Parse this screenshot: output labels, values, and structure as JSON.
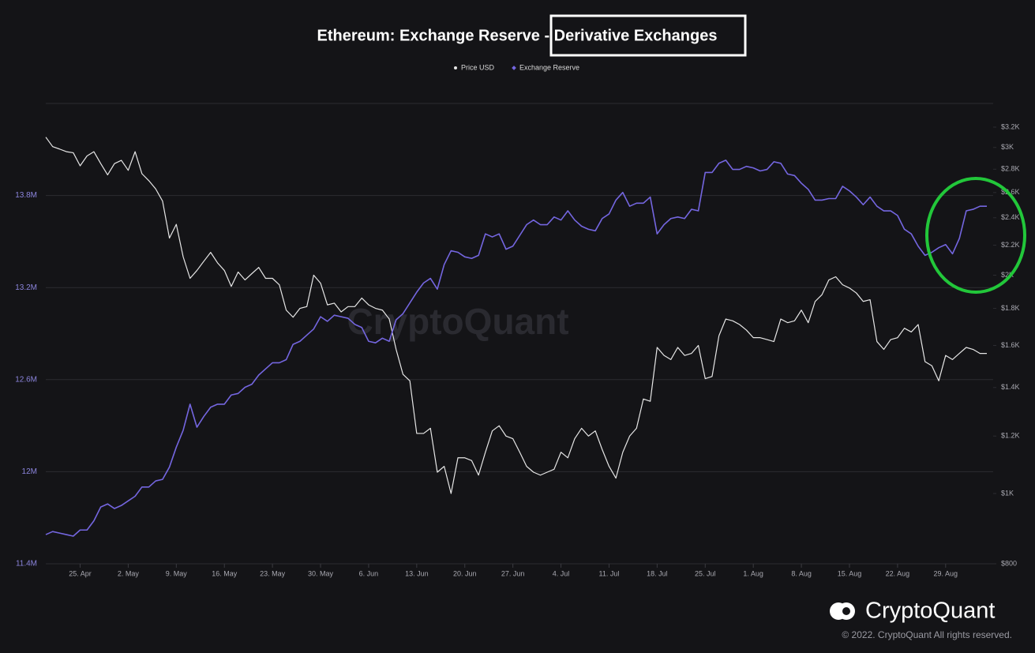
{
  "chart_data": {
    "type": "line",
    "title": "Ethereum: Exchange Reserve - Derivative Exchanges",
    "watermark": "CryptoQuant",
    "brand": "CryptoQuant",
    "footer": "© 2022. CryptoQuant All rights reserved.",
    "categories": [
      null,
      null,
      null,
      null,
      null,
      "25. Apr",
      null,
      null,
      null,
      null,
      null,
      null,
      "2. May",
      null,
      null,
      null,
      null,
      null,
      null,
      "9. May",
      null,
      null,
      null,
      null,
      null,
      null,
      "16. May",
      null,
      null,
      null,
      null,
      null,
      null,
      "23. May",
      null,
      null,
      null,
      null,
      null,
      null,
      "30. May",
      null,
      null,
      null,
      null,
      null,
      null,
      "6. Jun",
      null,
      null,
      null,
      null,
      null,
      null,
      "13. Jun",
      null,
      null,
      null,
      null,
      null,
      null,
      "20. Jun",
      null,
      null,
      null,
      null,
      null,
      null,
      "27. Jun",
      null,
      null,
      null,
      null,
      null,
      null,
      "4. Jul",
      null,
      null,
      null,
      null,
      null,
      null,
      "11. Jul",
      null,
      null,
      null,
      null,
      null,
      null,
      "18. Jul",
      null,
      null,
      null,
      null,
      null,
      null,
      "25. Jul",
      null,
      null,
      null,
      null,
      null,
      null,
      "1. Aug",
      null,
      null,
      null,
      null,
      null,
      null,
      "8. Aug",
      null,
      null,
      null,
      null,
      null,
      null,
      "15. Aug",
      null,
      null,
      null,
      null,
      null,
      null,
      "22. Aug",
      null,
      null,
      null,
      null,
      null,
      null,
      "29. Aug",
      null,
      null,
      null,
      null,
      null,
      null
    ],
    "series": [
      {
        "name": "Price USD",
        "color": "#e6e6e6",
        "axis": "y2",
        "marker": "dot",
        "values": [
          3100,
          3008,
          2985,
          2960,
          2950,
          2830,
          2920,
          2960,
          2850,
          2750,
          2850,
          2880,
          2790,
          2960,
          2760,
          2700,
          2630,
          2530,
          2250,
          2350,
          2120,
          1980,
          2030,
          2090,
          2150,
          2080,
          2030,
          1930,
          2020,
          1970,
          2010,
          2050,
          1980,
          1980,
          1940,
          1790,
          1750,
          1800,
          1810,
          2000,
          1950,
          1820,
          1830,
          1780,
          1810,
          1810,
          1860,
          1820,
          1800,
          1790,
          1740,
          1580,
          1460,
          1430,
          1210,
          1210,
          1230,
          1070,
          1090,
          1000,
          1120,
          1120,
          1110,
          1060,
          1140,
          1220,
          1240,
          1200,
          1190,
          1140,
          1090,
          1070,
          1060,
          1070,
          1080,
          1140,
          1120,
          1190,
          1230,
          1200,
          1220,
          1150,
          1090,
          1050,
          1140,
          1200,
          1230,
          1350,
          1340,
          1590,
          1550,
          1530,
          1590,
          1550,
          1560,
          1600,
          1440,
          1450,
          1650,
          1740,
          1730,
          1710,
          1680,
          1640,
          1640,
          1630,
          1620,
          1740,
          1720,
          1730,
          1790,
          1720,
          1840,
          1880,
          1970,
          1990,
          1940,
          1920,
          1890,
          1840,
          1850,
          1620,
          1580,
          1630,
          1640,
          1690,
          1670,
          1710,
          1520,
          1500,
          1430,
          1550,
          1530,
          1560,
          1590,
          1580,
          1560,
          1560
        ]
      },
      {
        "name": "Exchange Reserve",
        "color": "#7466e0",
        "axis": "y",
        "marker": "diamond",
        "values": [
          11590000,
          11610000,
          11600000,
          11590000,
          11580000,
          11620000,
          11620000,
          11680000,
          11770000,
          11790000,
          11760000,
          11780000,
          11810000,
          11840000,
          11900000,
          11900000,
          11940000,
          11950000,
          12030000,
          12160000,
          12270000,
          12440000,
          12290000,
          12360000,
          12420000,
          12440000,
          12440000,
          12500000,
          12510000,
          12550000,
          12570000,
          12630000,
          12670000,
          12710000,
          12710000,
          12730000,
          12830000,
          12850000,
          12890000,
          12930000,
          13010000,
          12980000,
          13020000,
          13010000,
          13000000,
          12960000,
          12940000,
          12850000,
          12840000,
          12870000,
          12850000,
          12990000,
          13030000,
          13100000,
          13170000,
          13230000,
          13260000,
          13190000,
          13350000,
          13440000,
          13430000,
          13400000,
          13390000,
          13410000,
          13550000,
          13530000,
          13550000,
          13450000,
          13470000,
          13540000,
          13610000,
          13640000,
          13610000,
          13610000,
          13660000,
          13640000,
          13700000,
          13640000,
          13600000,
          13580000,
          13570000,
          13650000,
          13680000,
          13770000,
          13820000,
          13730000,
          13750000,
          13750000,
          13790000,
          13550000,
          13610000,
          13650000,
          13660000,
          13650000,
          13710000,
          13700000,
          13950000,
          13950000,
          14010000,
          14030000,
          13970000,
          13970000,
          13990000,
          13980000,
          13960000,
          13970000,
          14020000,
          14010000,
          13940000,
          13930000,
          13880000,
          13840000,
          13770000,
          13770000,
          13780000,
          13780000,
          13860000,
          13830000,
          13790000,
          13740000,
          13790000,
          13730000,
          13700000,
          13700000,
          13670000,
          13580000,
          13550000,
          13470000,
          13410000,
          13430000,
          13460000,
          13480000,
          13420000,
          13520000,
          13700000,
          13710000,
          13730000,
          13730000
        ]
      }
    ],
    "ylim": [
      11400000,
      14400000
    ],
    "yticks": [
      {
        "value": 11400000,
        "label": "11.4M"
      },
      {
        "value": 12000000,
        "label": "12M"
      },
      {
        "value": 12600000,
        "label": "12.6M"
      },
      {
        "value": 13200000,
        "label": "13.2M"
      },
      {
        "value": 13800000,
        "label": "13.8M"
      }
    ],
    "y2lim": [
      800,
      3450
    ],
    "y2log": true,
    "y2ticks": [
      {
        "value": 800,
        "label": "$800"
      },
      {
        "value": 1000,
        "label": "$1K"
      },
      {
        "value": 1200,
        "label": "$1.2K"
      },
      {
        "value": 1400,
        "label": "$1.4K"
      },
      {
        "value": 1600,
        "label": "$1.6K"
      },
      {
        "value": 1800,
        "label": "$1.8K"
      },
      {
        "value": 2000,
        "label": "$2K"
      },
      {
        "value": 2200,
        "label": "$2.2K"
      },
      {
        "value": 2400,
        "label": "$2.4K"
      },
      {
        "value": 2600,
        "label": "$2.6K"
      },
      {
        "value": 2800,
        "label": "$2.8K"
      },
      {
        "value": 3000,
        "label": "$3K"
      },
      {
        "value": 3200,
        "label": "$3.2K"
      }
    ],
    "grid": true
  }
}
